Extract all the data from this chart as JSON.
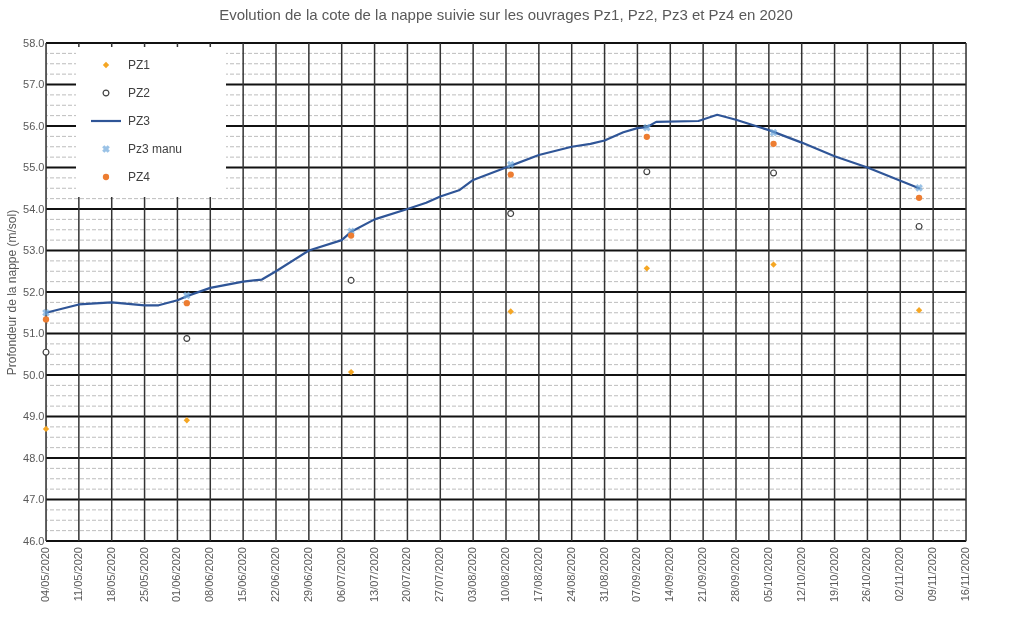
{
  "chart_data": {
    "type": "scatter",
    "title": "Evolution de la cote de la nappe suivie sur les ouvrages Pz1, Pz2, Pz3 et Pz4 en 2020",
    "ylabel": "Profondeur de la nappe  (m/sol)",
    "xlim": [
      "2020-05-04",
      "2020-11-16"
    ],
    "xticks": [
      {
        "value": "2020-05-04",
        "label": "04/05/2020"
      },
      {
        "value": "2020-05-11",
        "label": "11/05/2020"
      },
      {
        "value": "2020-05-18",
        "label": "18/05/2020"
      },
      {
        "value": "2020-05-25",
        "label": "25/05/2020"
      },
      {
        "value": "2020-06-01",
        "label": "01/06/2020"
      },
      {
        "value": "2020-06-08",
        "label": "08/06/2020"
      },
      {
        "value": "2020-06-15",
        "label": "15/06/2020"
      },
      {
        "value": "2020-06-22",
        "label": "22/06/2020"
      },
      {
        "value": "2020-06-29",
        "label": "29/06/2020"
      },
      {
        "value": "2020-07-06",
        "label": "06/07/2020"
      },
      {
        "value": "2020-07-13",
        "label": "13/07/2020"
      },
      {
        "value": "2020-07-20",
        "label": "20/07/2020"
      },
      {
        "value": "2020-07-27",
        "label": "27/07/2020"
      },
      {
        "value": "2020-08-03",
        "label": "03/08/2020"
      },
      {
        "value": "2020-08-10",
        "label": "10/08/2020"
      },
      {
        "value": "2020-08-17",
        "label": "17/08/2020"
      },
      {
        "value": "2020-08-24",
        "label": "24/08/2020"
      },
      {
        "value": "2020-08-31",
        "label": "31/08/2020"
      },
      {
        "value": "2020-09-07",
        "label": "07/09/2020"
      },
      {
        "value": "2020-09-14",
        "label": "14/09/2020"
      },
      {
        "value": "2020-09-21",
        "label": "21/09/2020"
      },
      {
        "value": "2020-09-28",
        "label": "28/09/2020"
      },
      {
        "value": "2020-10-05",
        "label": "05/10/2020"
      },
      {
        "value": "2020-10-12",
        "label": "12/10/2020"
      },
      {
        "value": "2020-10-19",
        "label": "19/10/2020"
      },
      {
        "value": "2020-10-26",
        "label": "26/10/2020"
      },
      {
        "value": "2020-11-02",
        "label": "02/11/2020"
      },
      {
        "value": "2020-11-09",
        "label": "09/11/2020"
      },
      {
        "value": "2020-11-16",
        "label": "16/11/2020"
      }
    ],
    "ylim": [
      46,
      58
    ],
    "yticks": [
      {
        "value": 46,
        "label": "46.0"
      },
      {
        "value": 46.25,
        "label": null
      },
      {
        "value": 46.5,
        "label": null
      },
      {
        "value": 46.75,
        "label": null
      },
      {
        "value": 47,
        "label": "47.0"
      },
      {
        "value": 47.25,
        "label": null
      },
      {
        "value": 47.5,
        "label": null
      },
      {
        "value": 47.75,
        "label": null
      },
      {
        "value": 48,
        "label": "48.0"
      },
      {
        "value": 48.25,
        "label": null
      },
      {
        "value": 48.5,
        "label": null
      },
      {
        "value": 48.75,
        "label": null
      },
      {
        "value": 49,
        "label": "49.0"
      },
      {
        "value": 49.25,
        "label": null
      },
      {
        "value": 49.5,
        "label": null
      },
      {
        "value": 49.75,
        "label": null
      },
      {
        "value": 50,
        "label": "50.0"
      },
      {
        "value": 50.25,
        "label": null
      },
      {
        "value": 50.5,
        "label": null
      },
      {
        "value": 50.75,
        "label": null
      },
      {
        "value": 51,
        "label": "51.0"
      },
      {
        "value": 51.25,
        "label": null
      },
      {
        "value": 51.5,
        "label": null
      },
      {
        "value": 51.75,
        "label": null
      },
      {
        "value": 52,
        "label": "52.0"
      },
      {
        "value": 52.25,
        "label": null
      },
      {
        "value": 52.5,
        "label": null
      },
      {
        "value": 52.75,
        "label": null
      },
      {
        "value": 53,
        "label": "53.0"
      },
      {
        "value": 53.25,
        "label": null
      },
      {
        "value": 53.5,
        "label": null
      },
      {
        "value": 53.75,
        "label": null
      },
      {
        "value": 54,
        "label": "54.0"
      },
      {
        "value": 54.25,
        "label": null
      },
      {
        "value": 54.5,
        "label": null
      },
      {
        "value": 54.75,
        "label": null
      },
      {
        "value": 55,
        "label": "55.0"
      },
      {
        "value": 55.25,
        "label": null
      },
      {
        "value": 55.5,
        "label": null
      },
      {
        "value": 55.75,
        "label": null
      },
      {
        "value": 56,
        "label": "56.0"
      },
      {
        "value": 56.25,
        "label": null
      },
      {
        "value": 56.5,
        "label": null
      },
      {
        "value": 56.75,
        "label": null
      },
      {
        "value": 57,
        "label": "57.0"
      },
      {
        "value": 57.25,
        "label": null
      },
      {
        "value": 57.5,
        "label": null
      },
      {
        "value": 57.75,
        "label": null
      },
      {
        "value": 58,
        "label": "58.0"
      }
    ],
    "grid": true,
    "legend": "top left",
    "series": [
      {
        "name": "PZ1",
        "marker": "diamond",
        "color": "#f5a623",
        "x": [
          "2020-05-04",
          "2020-06-03",
          "2020-07-08",
          "2020-08-11",
          "2020-09-09",
          "2020-10-06",
          "2020-11-06"
        ],
        "values": [
          48.7,
          48.91,
          50.07,
          51.53,
          52.57,
          52.66,
          51.56
        ]
      },
      {
        "name": "PZ2",
        "marker": "circle",
        "color": "#404040",
        "x": [
          "2020-05-04",
          "2020-06-03",
          "2020-07-08",
          "2020-08-11",
          "2020-09-09",
          "2020-10-06",
          "2020-11-06"
        ],
        "values": [
          50.55,
          50.88,
          52.28,
          53.89,
          54.9,
          54.87,
          53.58
        ]
      },
      {
        "name": "PZ3",
        "type": "line",
        "marker": "none",
        "color": "#2f5597",
        "x": [
          "2020-05-04",
          "2020-05-11",
          "2020-05-18",
          "2020-05-25",
          "2020-05-28",
          "2020-06-01",
          "2020-06-03",
          "2020-06-08",
          "2020-06-15",
          "2020-06-19",
          "2020-06-22",
          "2020-06-29",
          "2020-07-06",
          "2020-07-08",
          "2020-07-13",
          "2020-07-20",
          "2020-07-24",
          "2020-07-27",
          "2020-07-31",
          "2020-08-03",
          "2020-08-10",
          "2020-08-17",
          "2020-08-24",
          "2020-08-28",
          "2020-08-31",
          "2020-09-04",
          "2020-09-07",
          "2020-09-09",
          "2020-09-11",
          "2020-09-20",
          "2020-09-24",
          "2020-09-28",
          "2020-10-05",
          "2020-10-12",
          "2020-10-19",
          "2020-10-26",
          "2020-11-06"
        ],
        "values": [
          51.5,
          51.7,
          51.75,
          51.68,
          51.68,
          51.8,
          51.9,
          52.1,
          52.25,
          52.3,
          52.5,
          53.0,
          53.25,
          53.45,
          53.75,
          54.0,
          54.15,
          54.3,
          54.45,
          54.7,
          55.0,
          55.3,
          55.5,
          55.57,
          55.65,
          55.85,
          55.95,
          55.97,
          56.1,
          56.12,
          56.27,
          56.15,
          55.9,
          55.6,
          55.27,
          55.0,
          54.5
        ]
      },
      {
        "name": "Pz3 manu",
        "marker": "cross",
        "color": "#6fa8dc",
        "x": [
          "2020-05-04",
          "2020-06-03",
          "2020-07-08",
          "2020-08-11",
          "2020-09-09",
          "2020-10-06",
          "2020-11-06"
        ],
        "values": [
          51.5,
          51.92,
          53.46,
          55.07,
          55.96,
          55.84,
          54.51
        ]
      },
      {
        "name": "PZ4",
        "marker": "circle",
        "color": "#ed7d31",
        "x": [
          "2020-05-04",
          "2020-06-03",
          "2020-07-08",
          "2020-08-11",
          "2020-09-09",
          "2020-10-06",
          "2020-11-06"
        ],
        "values": [
          51.34,
          51.73,
          53.36,
          54.83,
          55.74,
          55.57,
          54.27
        ]
      }
    ]
  }
}
